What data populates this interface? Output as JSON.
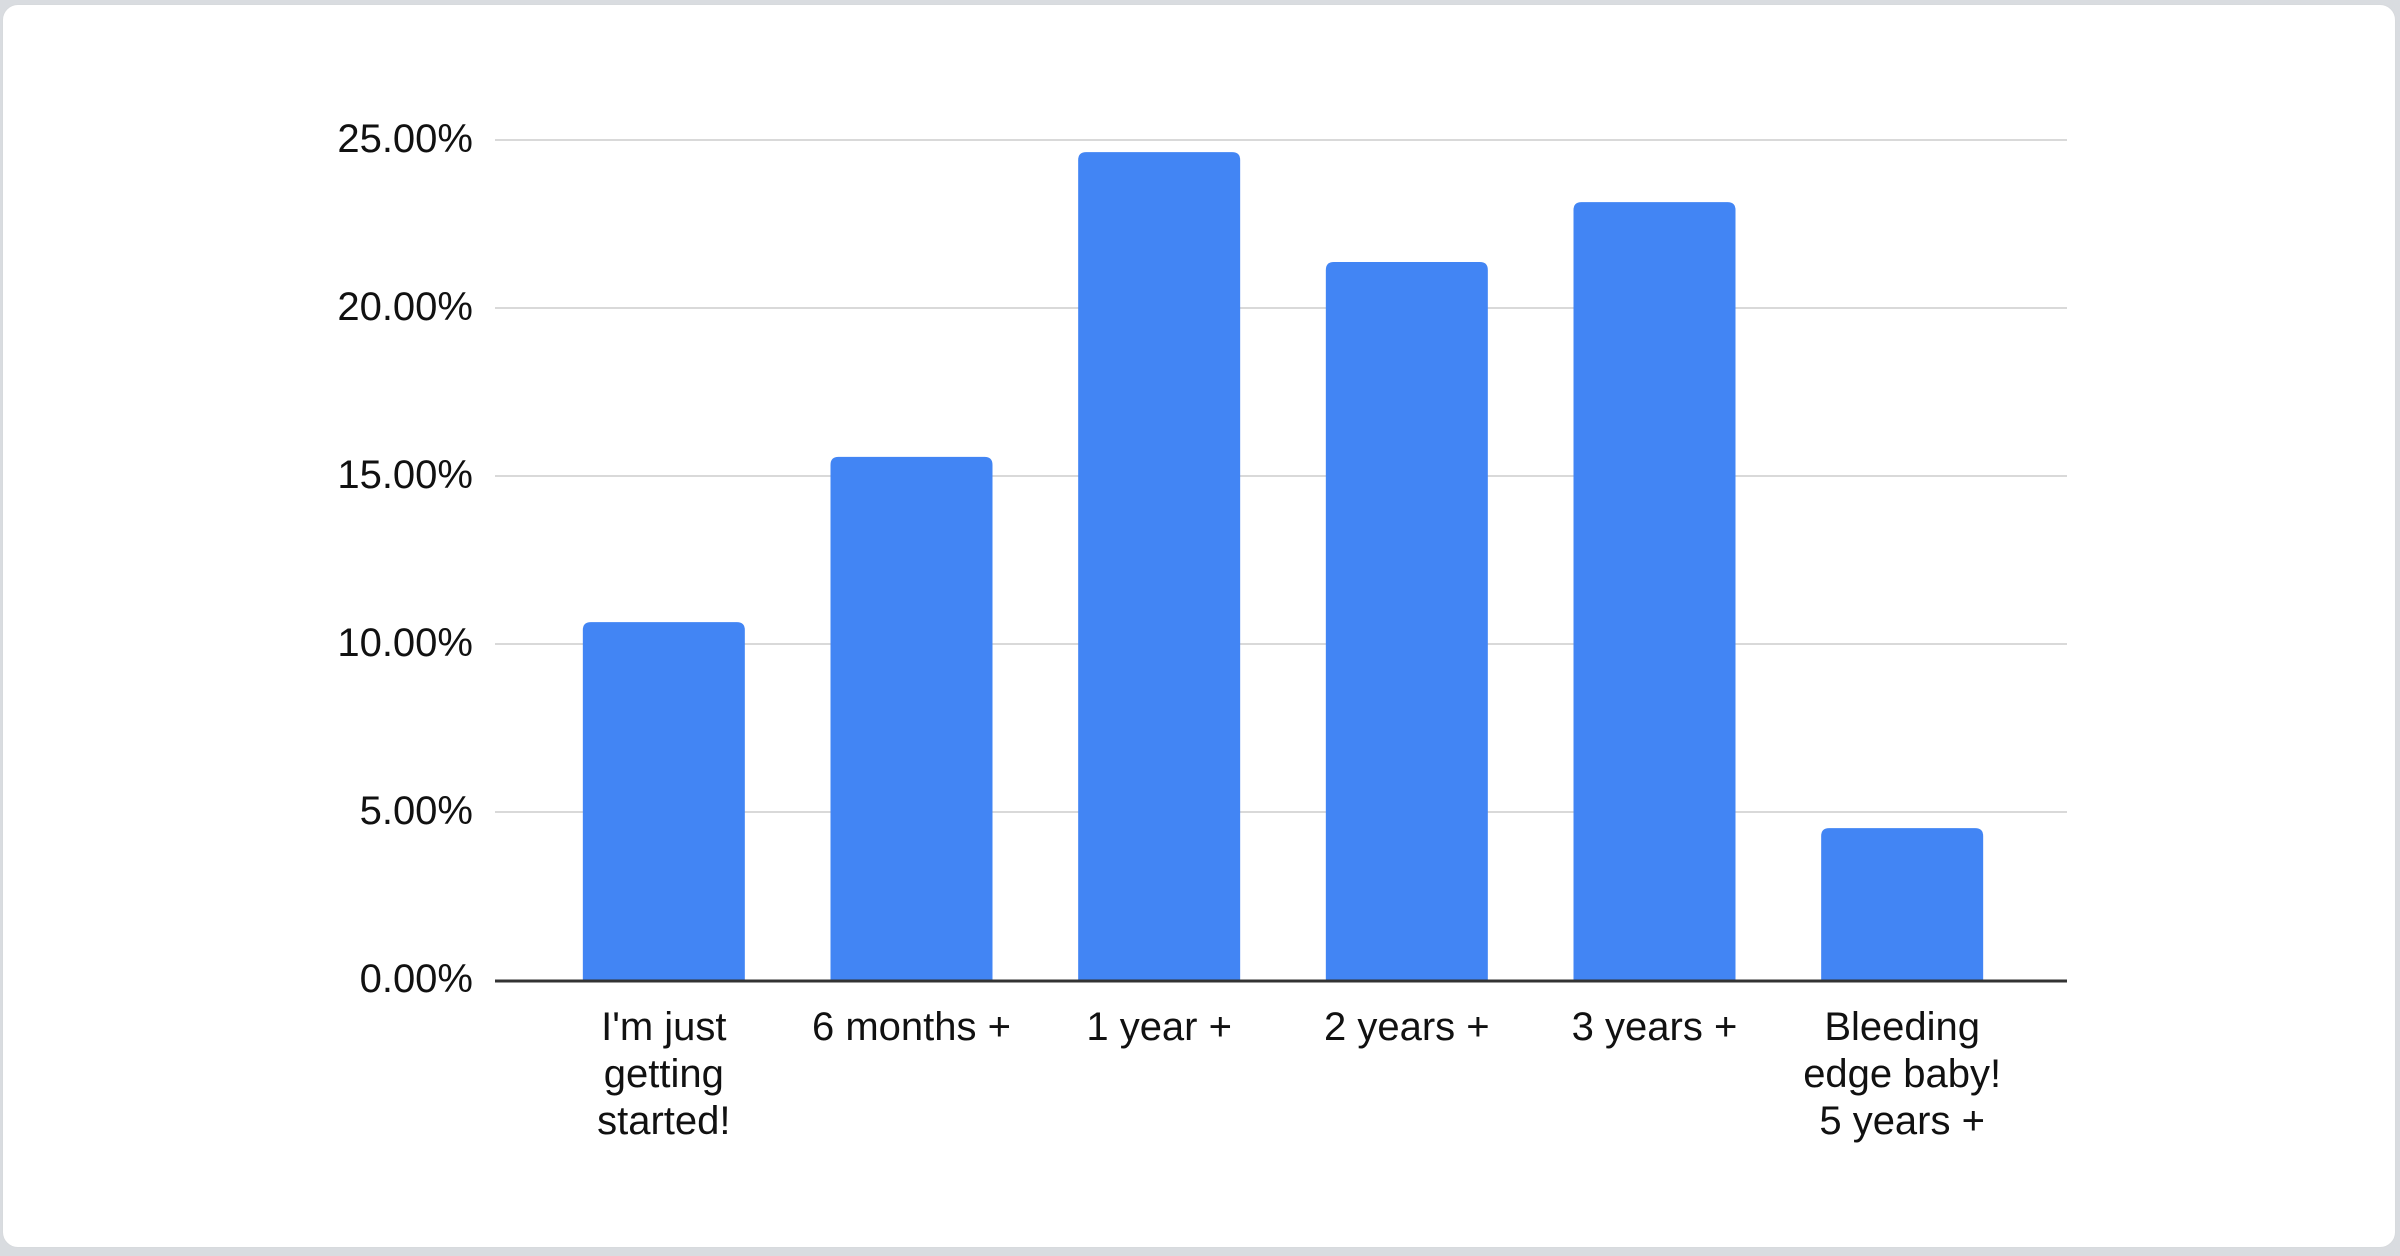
{
  "window": {
    "background_color": "#d9dce0",
    "card_background": "#ffffff",
    "card_border_color": "#d7dadd"
  },
  "chart_data": {
    "type": "bar",
    "title": "",
    "xlabel": "",
    "ylabel": "",
    "categories": [
      "I'm just getting started!",
      "6 months +",
      "1 year +",
      "2 years +",
      "3 years +",
      "Bleeding edge baby! 5 years +"
    ],
    "category_lines": [
      [
        "I'm just",
        "getting",
        "started!"
      ],
      [
        "6 months +"
      ],
      [
        "1 year +"
      ],
      [
        "2 years +"
      ],
      [
        "3 years +"
      ],
      [
        "Bleeding",
        "edge baby!",
        "5 years +"
      ]
    ],
    "values": [
      10.65,
      15.57,
      24.64,
      21.37,
      23.15,
      4.52
    ],
    "value_unit": "%",
    "ylim": [
      0,
      25
    ],
    "ytick_step": 5,
    "ytick_labels": [
      "0.00%",
      "5.00%",
      "10.00%",
      "15.00%",
      "20.00%",
      "25.00%"
    ],
    "grid": true,
    "legend_position": "none",
    "bar_color": "#4285f4",
    "gridline_color": "#d9d9d9",
    "baseline_color": "#333333",
    "label_color": "#111111"
  }
}
